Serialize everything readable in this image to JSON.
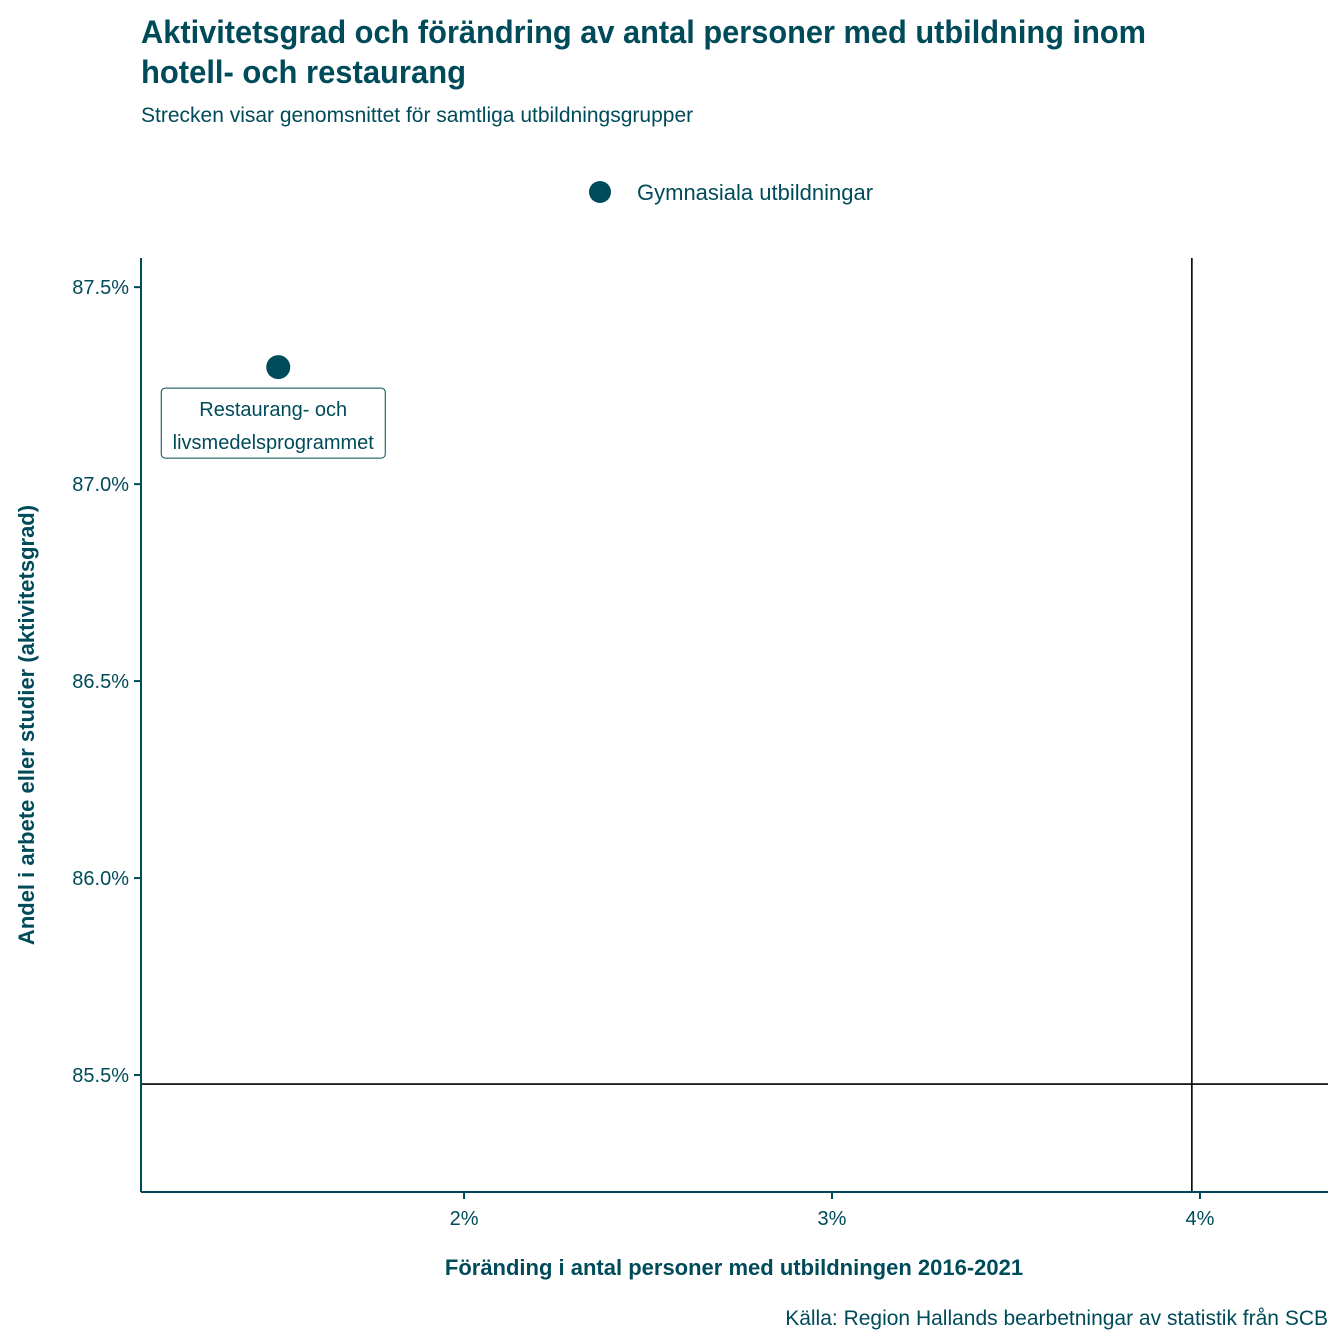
{
  "chart_data": {
    "type": "scatter",
    "title": "Aktivitetsgrad och förändring av antal personer med utbildning inom hotell- och restaurang",
    "title_lines": [
      "Aktivitetsgrad och förändring av antal personer med utbildning inom",
      "hotell- och restaurang"
    ],
    "subtitle": "Strecken visar genomsnittet för samtliga utbildningsgrupper",
    "legend": {
      "placement": "top",
      "entries": [
        {
          "name": "Gymnasiala utbildningar",
          "color": "#004b5a"
        }
      ]
    },
    "xlabel": "Föränding i antal personer med utbildningen 2016-2021",
    "ylabel": "Andel i arbete eller studier (aktivitetsgrad)",
    "caption": "Källa: Region Hallands bearbetningar av statistik från SCB",
    "xlim": [
      1.122,
      4.348
    ],
    "ylim": [
      85.203,
      87.574
    ],
    "x_ticks": [
      {
        "value": 2,
        "label": "2%"
      },
      {
        "value": 3,
        "label": "3%"
      },
      {
        "value": 4,
        "label": "4%"
      }
    ],
    "y_ticks": [
      {
        "value": 85.5,
        "label": "85.5%"
      },
      {
        "value": 86.0,
        "label": "86.0%"
      },
      {
        "value": 86.5,
        "label": "86.5%"
      },
      {
        "value": 87.0,
        "label": "87.0%"
      },
      {
        "value": 87.5,
        "label": "87.5%"
      }
    ],
    "points": [
      {
        "series": "Gymnasiala utbildningar",
        "x": 1.495,
        "y": 87.297,
        "label_lines": [
          "Restaurang- och",
          "livsmedelsprogrammet"
        ]
      }
    ],
    "reference_lines": {
      "x_mean": 3.978,
      "y_mean": 85.477
    },
    "grid": false,
    "color": "#004b5a"
  }
}
